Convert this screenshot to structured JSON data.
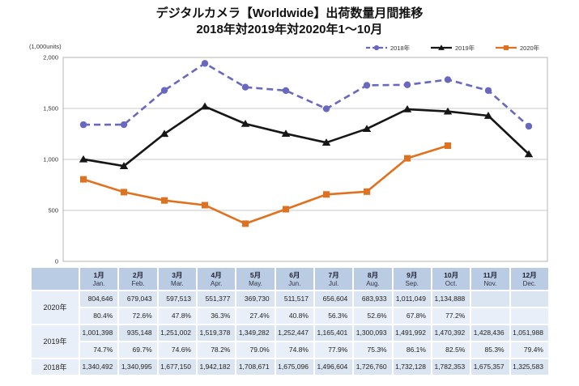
{
  "title": {
    "line1": "デジタルカメラ【Worldwide】出荷数量月間推移",
    "line2": "2018年対2019年対2020年1～10月"
  },
  "chart_data": {
    "type": "line",
    "title": "デジタルカメラ【Worldwide】出荷数量月間推移 2018年対2019年対2020年1～10月",
    "unit_label": "(1,000units)",
    "xlabel": "",
    "ylabel": "(1,000units)",
    "ylim": [
      0,
      2000
    ],
    "grid": true,
    "legend_position": "top-right",
    "y_gridlines": [
      0,
      500,
      1000,
      1500,
      2000
    ],
    "yticks": [
      "0",
      "500",
      "1,000",
      "1,500",
      "2,000"
    ],
    "categories": [
      "1月",
      "2月",
      "3月",
      "4月",
      "5月",
      "6月",
      "7月",
      "8月",
      "9月",
      "10月",
      "11月",
      "12月"
    ],
    "categories_en": [
      "Jan.",
      "Feb.",
      "Mar.",
      "Apr.",
      "May.",
      "Jun.",
      "Jul.",
      "Aug.",
      "Sep.",
      "Oct.",
      "Nov.",
      "Dec."
    ],
    "series": [
      {
        "key": "2018",
        "name": "2018年",
        "color": "#6868c0",
        "line_style": "dashed",
        "marker": "circle",
        "values": [
          1340.492,
          1340.995,
          1677.15,
          1942.182,
          1708.671,
          1675.096,
          1496.604,
          1726.76,
          1732.128,
          1782.353,
          1675.357,
          1325.583
        ]
      },
      {
        "key": "2019",
        "name": "2019年",
        "color": "#161616",
        "line_style": "solid",
        "marker": "triangle",
        "values": [
          1001.398,
          935.148,
          1251.002,
          1519.378,
          1349.282,
          1252.447,
          1165.401,
          1300.093,
          1491.992,
          1470.392,
          1428.436,
          1051.988
        ]
      },
      {
        "key": "2020",
        "name": "2020年",
        "color": "#e0711f",
        "line_style": "solid",
        "marker": "square",
        "values": [
          804.646,
          679.043,
          597.513,
          551.377,
          369.73,
          511.517,
          656.604,
          683.933,
          1011.049,
          1134.888
        ]
      }
    ]
  },
  "table": {
    "months": [
      {
        "jp": "1月",
        "en": "Jan."
      },
      {
        "jp": "2月",
        "en": "Feb."
      },
      {
        "jp": "3月",
        "en": "Mar."
      },
      {
        "jp": "4月",
        "en": "Apr."
      },
      {
        "jp": "5月",
        "en": "May."
      },
      {
        "jp": "6月",
        "en": "Jun."
      },
      {
        "jp": "7月",
        "en": "Jul."
      },
      {
        "jp": "8月",
        "en": "Aug."
      },
      {
        "jp": "9月",
        "en": "Sep."
      },
      {
        "jp": "10月",
        "en": "Oct."
      },
      {
        "jp": "11月",
        "en": "Nov."
      },
      {
        "jp": "12月",
        "en": "Dec."
      }
    ],
    "rows": [
      {
        "label": "2020年",
        "values": [
          "804,646",
          "679,043",
          "597,513",
          "551,377",
          "369,730",
          "511,517",
          "656,604",
          "683,933",
          "1,011,049",
          "1,134,888",
          "",
          ""
        ],
        "percents": [
          "80.4%",
          "72.6%",
          "47.8%",
          "36.3%",
          "27.4%",
          "40.8%",
          "56.3%",
          "52.6%",
          "67.8%",
          "77.2%",
          "",
          ""
        ]
      },
      {
        "label": "2019年",
        "values": [
          "1,001,398",
          "935,148",
          "1,251,002",
          "1,519,378",
          "1,349,282",
          "1,252,447",
          "1,165,401",
          "1,300,093",
          "1,491,992",
          "1,470,392",
          "1,428,436",
          "1,051,988"
        ],
        "percents": [
          "74.7%",
          "69.7%",
          "74.6%",
          "78.2%",
          "79.0%",
          "74.8%",
          "77.9%",
          "75.3%",
          "86.1%",
          "82.5%",
          "85.3%",
          "79.4%"
        ]
      },
      {
        "label": "2018年",
        "values": [
          "1,340,492",
          "1,340,995",
          "1,677,150",
          "1,942,182",
          "1,708,671",
          "1,675,096",
          "1,496,604",
          "1,726,760",
          "1,732,128",
          "1,782,353",
          "1,675,357",
          "1,325,583"
        ]
      }
    ]
  },
  "colors": {
    "grid": "#c9c9c9",
    "frame": "#b4b4b4",
    "tick_text": "#333333",
    "header_bg": "#b9cce4",
    "value_row_bg": "#dbe5f1",
    "pct_row_bg": "#e9eff8"
  }
}
